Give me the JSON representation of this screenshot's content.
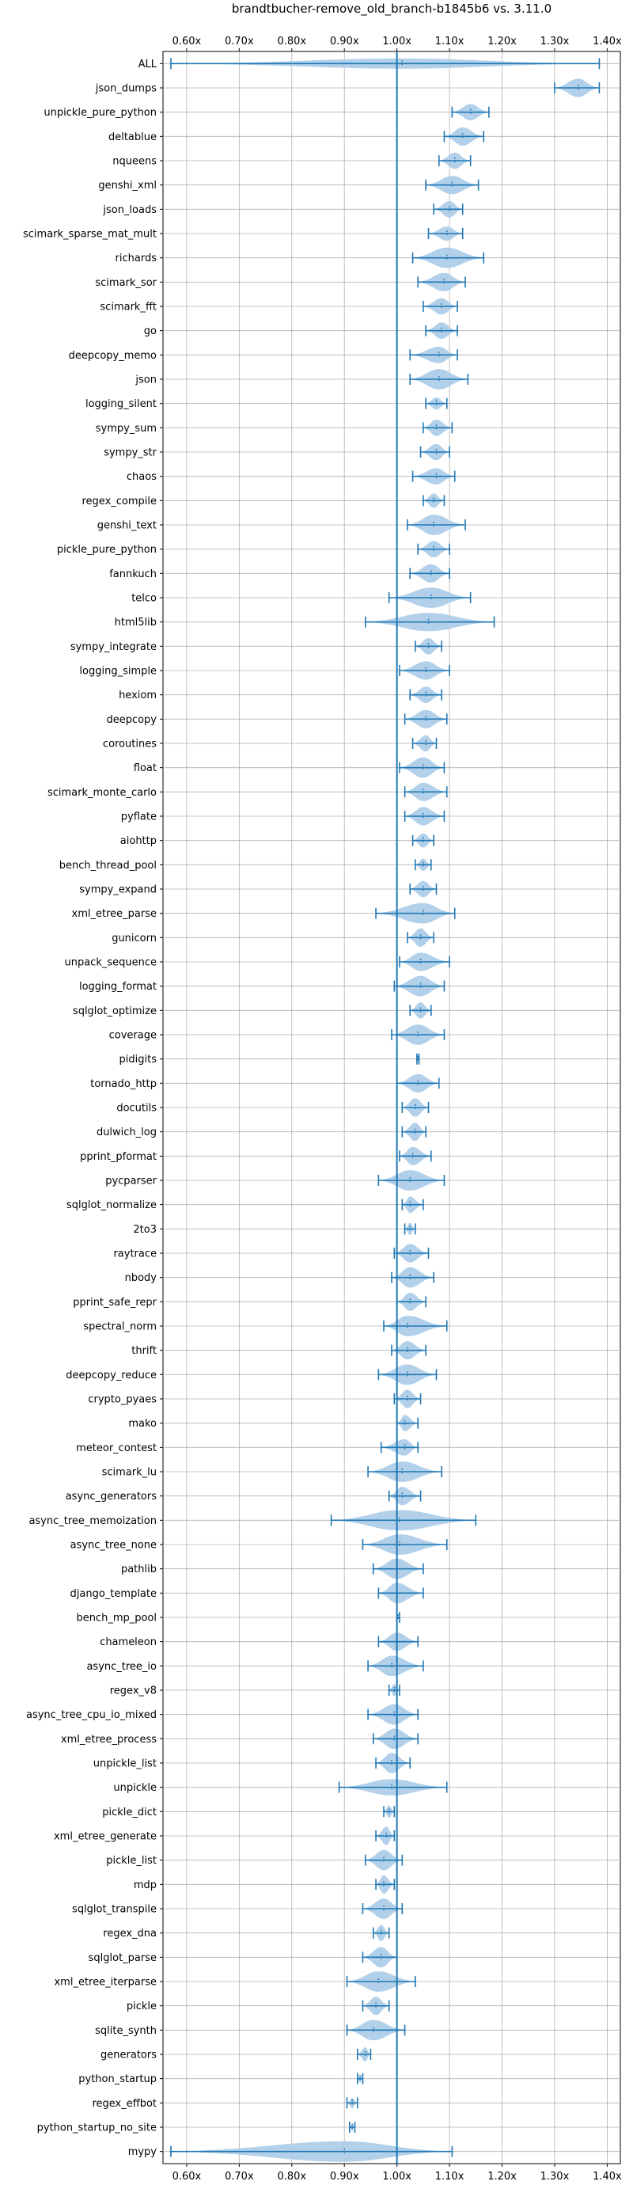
{
  "chart_data": {
    "type": "violin",
    "title": "brandtbucher-remove_old_branch-b1845b6 vs. 3.11.0",
    "xlabel": "",
    "ylabel": "",
    "x_tick_labels": [
      "0.60x",
      "0.70x",
      "0.80x",
      "0.90x",
      "1.00x",
      "1.10x",
      "1.20x",
      "1.30x",
      "1.40x"
    ],
    "x_ticks": [
      0.6,
      0.7,
      0.8,
      0.9,
      1.0,
      1.1,
      1.2,
      1.3,
      1.4
    ],
    "xlim": [
      0.555,
      1.425
    ],
    "reference_line": 1.0,
    "grid": true,
    "colors": {
      "body": "#aecde8",
      "line": "#1f77b4",
      "grid": "#b0b0b0",
      "text": "#000000"
    },
    "benchmarks": [
      {
        "name": "ALL",
        "min": 0.57,
        "max": 1.385,
        "median": 1.01,
        "width": 0.5
      },
      {
        "name": "json_dumps",
        "min": 1.3,
        "max": 1.385,
        "median": 1.345,
        "width": 0.9
      },
      {
        "name": "unpickle_pure_python",
        "min": 1.105,
        "max": 1.175,
        "median": 1.14,
        "width": 0.8
      },
      {
        "name": "deltablue",
        "min": 1.09,
        "max": 1.165,
        "median": 1.125,
        "width": 0.9
      },
      {
        "name": "nqueens",
        "min": 1.08,
        "max": 1.14,
        "median": 1.11,
        "width": 0.8
      },
      {
        "name": "genshi_xml",
        "min": 1.055,
        "max": 1.155,
        "median": 1.105,
        "width": 0.9
      },
      {
        "name": "json_loads",
        "min": 1.07,
        "max": 1.125,
        "median": 1.1,
        "width": 0.8
      },
      {
        "name": "scimark_sparse_mat_mult",
        "min": 1.06,
        "max": 1.125,
        "median": 1.095,
        "width": 0.7
      },
      {
        "name": "richards",
        "min": 1.03,
        "max": 1.165,
        "median": 1.095,
        "width": 1.0
      },
      {
        "name": "scimark_sor",
        "min": 1.04,
        "max": 1.13,
        "median": 1.09,
        "width": 0.9
      },
      {
        "name": "scimark_fft",
        "min": 1.05,
        "max": 1.115,
        "median": 1.085,
        "width": 0.8
      },
      {
        "name": "go",
        "min": 1.055,
        "max": 1.115,
        "median": 1.085,
        "width": 0.8
      },
      {
        "name": "deepcopy_memo",
        "min": 1.025,
        "max": 1.115,
        "median": 1.08,
        "width": 0.8
      },
      {
        "name": "json",
        "min": 1.025,
        "max": 1.135,
        "median": 1.08,
        "width": 1.0
      },
      {
        "name": "logging_silent",
        "min": 1.055,
        "max": 1.095,
        "median": 1.075,
        "width": 0.6
      },
      {
        "name": "sympy_sum",
        "min": 1.05,
        "max": 1.105,
        "median": 1.075,
        "width": 0.8
      },
      {
        "name": "sympy_str",
        "min": 1.045,
        "max": 1.1,
        "median": 1.075,
        "width": 0.8
      },
      {
        "name": "chaos",
        "min": 1.03,
        "max": 1.11,
        "median": 1.075,
        "width": 0.8
      },
      {
        "name": "regex_compile",
        "min": 1.05,
        "max": 1.09,
        "median": 1.07,
        "width": 0.7
      },
      {
        "name": "genshi_text",
        "min": 1.02,
        "max": 1.13,
        "median": 1.07,
        "width": 1.0
      },
      {
        "name": "pickle_pure_python",
        "min": 1.04,
        "max": 1.1,
        "median": 1.07,
        "width": 0.8
      },
      {
        "name": "fannkuch",
        "min": 1.025,
        "max": 1.1,
        "median": 1.065,
        "width": 0.9
      },
      {
        "name": "telco",
        "min": 0.985,
        "max": 1.14,
        "median": 1.065,
        "width": 1.0
      },
      {
        "name": "html5lib",
        "min": 0.94,
        "max": 1.185,
        "median": 1.06,
        "width": 0.9
      },
      {
        "name": "sympy_integrate",
        "min": 1.035,
        "max": 1.085,
        "median": 1.06,
        "width": 0.8
      },
      {
        "name": "logging_simple",
        "min": 1.005,
        "max": 1.1,
        "median": 1.055,
        "width": 0.9
      },
      {
        "name": "hexiom",
        "min": 1.025,
        "max": 1.085,
        "median": 1.055,
        "width": 0.8
      },
      {
        "name": "deepcopy",
        "min": 1.015,
        "max": 1.095,
        "median": 1.055,
        "width": 0.9
      },
      {
        "name": "coroutines",
        "min": 1.03,
        "max": 1.075,
        "median": 1.055,
        "width": 0.8
      },
      {
        "name": "float",
        "min": 1.005,
        "max": 1.09,
        "median": 1.05,
        "width": 1.0
      },
      {
        "name": "scimark_monte_carlo",
        "min": 1.015,
        "max": 1.095,
        "median": 1.05,
        "width": 0.9
      },
      {
        "name": "pyflate",
        "min": 1.015,
        "max": 1.09,
        "median": 1.05,
        "width": 0.9
      },
      {
        "name": "aiohttp",
        "min": 1.03,
        "max": 1.07,
        "median": 1.05,
        "width": 0.7
      },
      {
        "name": "bench_thread_pool",
        "min": 1.035,
        "max": 1.065,
        "median": 1.05,
        "width": 0.6
      },
      {
        "name": "sympy_expand",
        "min": 1.025,
        "max": 1.075,
        "median": 1.05,
        "width": 0.8
      },
      {
        "name": "xml_etree_parse",
        "min": 0.96,
        "max": 1.11,
        "median": 1.05,
        "width": 1.0
      },
      {
        "name": "gunicorn",
        "min": 1.02,
        "max": 1.07,
        "median": 1.045,
        "width": 0.9
      },
      {
        "name": "unpack_sequence",
        "min": 1.005,
        "max": 1.1,
        "median": 1.045,
        "width": 0.9
      },
      {
        "name": "logging_format",
        "min": 0.995,
        "max": 1.09,
        "median": 1.045,
        "width": 1.0
      },
      {
        "name": "sqlglot_optimize",
        "min": 1.025,
        "max": 1.065,
        "median": 1.045,
        "width": 0.8
      },
      {
        "name": "coverage",
        "min": 0.99,
        "max": 1.09,
        "median": 1.04,
        "width": 1.0
      },
      {
        "name": "pidigits",
        "min": 1.038,
        "max": 1.042,
        "median": 1.04,
        "width": 0.3
      },
      {
        "name": "tornado_http",
        "min": 1.0,
        "max": 1.08,
        "median": 1.04,
        "width": 0.9
      },
      {
        "name": "docutils",
        "min": 1.01,
        "max": 1.06,
        "median": 1.035,
        "width": 0.9
      },
      {
        "name": "dulwich_log",
        "min": 1.01,
        "max": 1.055,
        "median": 1.035,
        "width": 0.9
      },
      {
        "name": "pprint_pformat",
        "min": 1.005,
        "max": 1.065,
        "median": 1.03,
        "width": 0.9
      },
      {
        "name": "pycparser",
        "min": 0.965,
        "max": 1.09,
        "median": 1.025,
        "width": 1.0
      },
      {
        "name": "sqlglot_normalize",
        "min": 1.01,
        "max": 1.05,
        "median": 1.025,
        "width": 0.8
      },
      {
        "name": "2to3",
        "min": 1.015,
        "max": 1.035,
        "median": 1.025,
        "width": 0.6
      },
      {
        "name": "raytrace",
        "min": 0.995,
        "max": 1.06,
        "median": 1.025,
        "width": 0.9
      },
      {
        "name": "nbody",
        "min": 0.99,
        "max": 1.07,
        "median": 1.025,
        "width": 1.0
      },
      {
        "name": "pprint_safe_repr",
        "min": 1.0,
        "max": 1.055,
        "median": 1.025,
        "width": 0.9
      },
      {
        "name": "spectral_norm",
        "min": 0.975,
        "max": 1.095,
        "median": 1.02,
        "width": 1.0
      },
      {
        "name": "thrift",
        "min": 0.99,
        "max": 1.055,
        "median": 1.02,
        "width": 0.9
      },
      {
        "name": "deepcopy_reduce",
        "min": 0.965,
        "max": 1.075,
        "median": 1.02,
        "width": 1.0
      },
      {
        "name": "crypto_pyaes",
        "min": 0.995,
        "max": 1.045,
        "median": 1.02,
        "width": 0.9
      },
      {
        "name": "mako",
        "min": 1.0,
        "max": 1.04,
        "median": 1.015,
        "width": 0.8
      },
      {
        "name": "meteor_contest",
        "min": 0.97,
        "max": 1.04,
        "median": 1.015,
        "width": 0.8
      },
      {
        "name": "scimark_lu",
        "min": 0.945,
        "max": 1.085,
        "median": 1.01,
        "width": 1.0
      },
      {
        "name": "async_generators",
        "min": 0.985,
        "max": 1.045,
        "median": 1.01,
        "width": 0.9
      },
      {
        "name": "async_tree_memoization",
        "min": 0.875,
        "max": 1.15,
        "median": 1.005,
        "width": 1.0
      },
      {
        "name": "async_tree_none",
        "min": 0.935,
        "max": 1.095,
        "median": 1.005,
        "width": 1.0
      },
      {
        "name": "pathlib",
        "min": 0.955,
        "max": 1.05,
        "median": 1.0,
        "width": 1.0
      },
      {
        "name": "django_template",
        "min": 0.965,
        "max": 1.05,
        "median": 1.0,
        "width": 1.0
      },
      {
        "name": "bench_mp_pool",
        "min": 1.0,
        "max": 1.005,
        "median": 1.002,
        "width": 0.2
      },
      {
        "name": "chameleon",
        "min": 0.965,
        "max": 1.04,
        "median": 1.0,
        "width": 0.9
      },
      {
        "name": "async_tree_io",
        "min": 0.945,
        "max": 1.05,
        "median": 0.99,
        "width": 1.0
      },
      {
        "name": "regex_v8",
        "min": 0.985,
        "max": 1.005,
        "median": 0.995,
        "width": 0.6
      },
      {
        "name": "async_tree_cpu_io_mixed",
        "min": 0.945,
        "max": 1.04,
        "median": 0.995,
        "width": 1.0
      },
      {
        "name": "xml_etree_process",
        "min": 0.955,
        "max": 1.04,
        "median": 0.995,
        "width": 1.0
      },
      {
        "name": "unpickle_list",
        "min": 0.96,
        "max": 1.025,
        "median": 0.99,
        "width": 1.0
      },
      {
        "name": "unpickle",
        "min": 0.89,
        "max": 1.095,
        "median": 0.99,
        "width": 0.8
      },
      {
        "name": "pickle_dict",
        "min": 0.975,
        "max": 0.995,
        "median": 0.985,
        "width": 0.6
      },
      {
        "name": "xml_etree_generate",
        "min": 0.96,
        "max": 0.995,
        "median": 0.98,
        "width": 0.9
      },
      {
        "name": "pickle_list",
        "min": 0.94,
        "max": 1.01,
        "median": 0.975,
        "width": 1.0
      },
      {
        "name": "mdp",
        "min": 0.96,
        "max": 0.995,
        "median": 0.975,
        "width": 0.9
      },
      {
        "name": "sqlglot_transpile",
        "min": 0.935,
        "max": 1.01,
        "median": 0.975,
        "width": 1.0
      },
      {
        "name": "regex_dna",
        "min": 0.955,
        "max": 0.985,
        "median": 0.97,
        "width": 0.8
      },
      {
        "name": "sqlglot_parse",
        "min": 0.935,
        "max": 1.0,
        "median": 0.97,
        "width": 1.0
      },
      {
        "name": "xml_etree_iterparse",
        "min": 0.905,
        "max": 1.035,
        "median": 0.965,
        "width": 1.0
      },
      {
        "name": "pickle",
        "min": 0.935,
        "max": 0.985,
        "median": 0.96,
        "width": 0.9
      },
      {
        "name": "sqlite_synth",
        "min": 0.905,
        "max": 1.015,
        "median": 0.955,
        "width": 1.0
      },
      {
        "name": "generators",
        "min": 0.925,
        "max": 0.95,
        "median": 0.94,
        "width": 0.7
      },
      {
        "name": "python_startup",
        "min": 0.925,
        "max": 0.935,
        "median": 0.93,
        "width": 0.4
      },
      {
        "name": "regex_effbot",
        "min": 0.905,
        "max": 0.925,
        "median": 0.915,
        "width": 0.5
      },
      {
        "name": "python_startup_no_site",
        "min": 0.91,
        "max": 0.92,
        "median": 0.915,
        "width": 0.4
      },
      {
        "name": "mypy",
        "min": 0.57,
        "max": 1.105,
        "median": 0.9,
        "width": 1.0
      }
    ]
  }
}
